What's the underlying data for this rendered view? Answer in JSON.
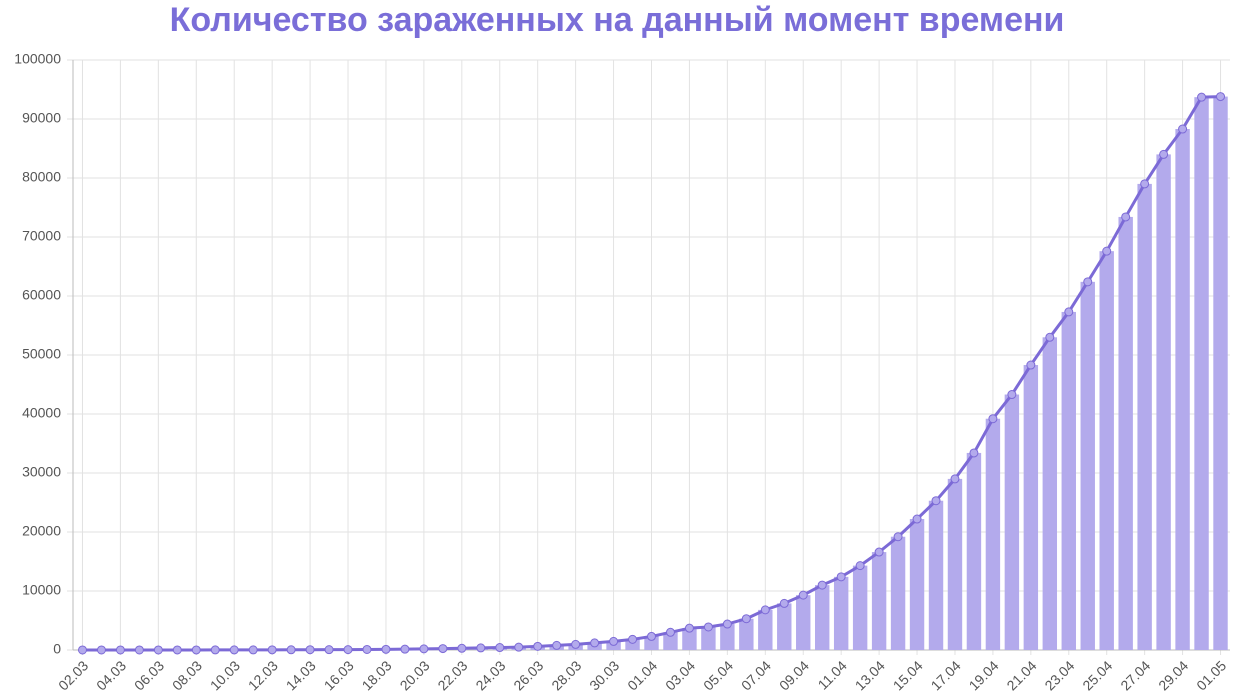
{
  "chart_data": {
    "type": "bar",
    "title": "Количество зараженных на данный момент времени",
    "categories": [
      "02.03",
      null,
      "04.03",
      null,
      "06.03",
      null,
      "08.03",
      null,
      "10.03",
      null,
      "12.03",
      null,
      "14.03",
      null,
      "16.03",
      null,
      "18.03",
      null,
      "20.03",
      null,
      "22.03",
      null,
      "24.03",
      null,
      "26.03",
      null,
      "28.03",
      null,
      "30.03",
      null,
      "01.04",
      null,
      "03.04",
      null,
      "05.04",
      null,
      "07.04",
      null,
      "09.04",
      null,
      "11.04",
      null,
      "13.04",
      null,
      "15.04",
      null,
      "17.04",
      null,
      "19.04",
      null,
      "21.04",
      null,
      "23.04",
      null,
      "25.04",
      null,
      "27.04",
      null,
      "29.04",
      null,
      "01.05"
    ],
    "values": [
      3,
      3,
      3,
      3,
      5,
      7,
      10,
      13,
      17,
      20,
      28,
      34,
      45,
      59,
      63,
      90,
      114,
      140,
      190,
      240,
      290,
      350,
      420,
      480,
      620,
      780,
      950,
      1200,
      1460,
      1800,
      2300,
      3000,
      3700,
      3900,
      4400,
      5300,
      6800,
      7900,
      9300,
      11000,
      12400,
      14300,
      16600,
      19200,
      22200,
      25300,
      29000,
      33400,
      39200,
      43300,
      48300,
      53000,
      57300,
      62400,
      67600,
      73400,
      79000,
      84000,
      88300,
      93700,
      93800
    ],
    "color": "#b3aaec",
    "line": true,
    "line_color": "#7c6ad6",
    "ylim": [
      0,
      100000
    ],
    "yticks": [
      0,
      10000,
      20000,
      30000,
      40000,
      50000,
      60000,
      70000,
      80000,
      90000,
      100000
    ],
    "grid": true
  }
}
